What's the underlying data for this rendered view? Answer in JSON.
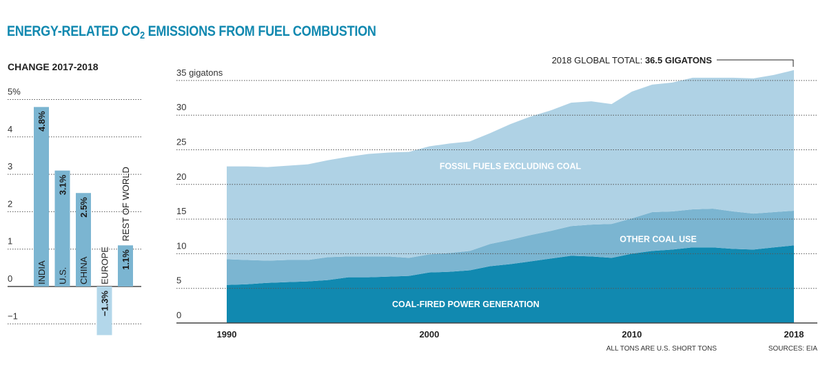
{
  "title": {
    "prefix": "ENERGY-RELATED CO",
    "subscript": "2",
    "suffix": " EMISSIONS FROM FUEL COMBUSTION"
  },
  "colors": {
    "title": "#1289b0",
    "coal_power": "#1189b0",
    "other_coal": "#7bb5d1",
    "fossil_ex_coal": "#afd2e5",
    "bar_positive": "#7bb5d1",
    "bar_negative": "#b3d7ea"
  },
  "footnotes": {
    "tons_note": "ALL TONS ARE U.S. SHORT TONS",
    "sources": "SOURCES: EIA"
  },
  "chart_data": [
    {
      "type": "bar",
      "title": "CHANGE 2017-2018",
      "categories": [
        "INDIA",
        "U.S.",
        "CHINA",
        "EUROPE",
        "REST OF WORLD"
      ],
      "values": [
        4.8,
        3.1,
        2.5,
        -1.3,
        1.1
      ],
      "value_labels": [
        "4.8%",
        "3.1%",
        "2.5%",
        "−1.3%",
        "1.1%"
      ],
      "yticks": [
        -1,
        0,
        1,
        2,
        3,
        4,
        5
      ],
      "ytick_labels": [
        "−1",
        "0",
        "1",
        "2",
        "3",
        "4",
        "5%"
      ],
      "ylim": [
        -1.5,
        5
      ],
      "grid": true,
      "xlabel": "",
      "ylabel": ""
    },
    {
      "type": "area",
      "stacked": true,
      "title": "",
      "x": [
        1990,
        1991,
        1992,
        1993,
        1994,
        1995,
        1996,
        1997,
        1998,
        1999,
        2000,
        2001,
        2002,
        2003,
        2004,
        2005,
        2006,
        2007,
        2008,
        2009,
        2010,
        2011,
        2012,
        2013,
        2014,
        2015,
        2016,
        2017,
        2018
      ],
      "series": [
        {
          "name": "COAL-FIRED POWER GENERATION",
          "values": [
            5.5,
            5.6,
            5.8,
            5.9,
            6.0,
            6.2,
            6.6,
            6.6,
            6.7,
            6.8,
            7.3,
            7.4,
            7.6,
            8.2,
            8.5,
            8.9,
            9.3,
            9.7,
            9.6,
            9.4,
            10.0,
            10.4,
            10.6,
            10.9,
            10.9,
            10.7,
            10.6,
            10.9,
            11.2
          ]
        },
        {
          "name": "OTHER COAL USE",
          "values": [
            3.7,
            3.5,
            3.2,
            3.2,
            3.1,
            3.3,
            3.0,
            3.0,
            2.9,
            2.6,
            2.6,
            2.7,
            2.8,
            3.2,
            3.5,
            3.8,
            4.0,
            4.3,
            4.6,
            4.9,
            5.1,
            5.6,
            5.5,
            5.5,
            5.6,
            5.4,
            5.2,
            5.1,
            5.0
          ]
        },
        {
          "name": "FOSSIL FUELS EXCLUDING COAL",
          "values": [
            13.4,
            13.5,
            13.5,
            13.6,
            13.8,
            14.0,
            14.4,
            14.8,
            15.0,
            15.3,
            15.6,
            15.8,
            15.8,
            16.0,
            16.7,
            17.1,
            17.4,
            17.8,
            17.8,
            17.3,
            18.3,
            18.4,
            18.6,
            19.0,
            18.9,
            19.3,
            19.5,
            19.8,
            20.3
          ]
        }
      ],
      "totals_note": "2018 GLOBAL TOTAL: ",
      "totals_value": "36.5 GIGATONS",
      "yticks": [
        0,
        5,
        10,
        15,
        20,
        25,
        30,
        35
      ],
      "ytick_labels": [
        "0",
        "5",
        "10",
        "15",
        "20",
        "25",
        "30",
        "35 gigatons"
      ],
      "xticks": [
        1990,
        2000,
        2010,
        2018
      ],
      "xtick_labels": [
        "1990",
        "2000",
        "2010",
        "2018"
      ],
      "ylim": [
        0,
        36.5
      ],
      "xlabel": "",
      "ylabel": "gigatons",
      "grid": true
    }
  ]
}
